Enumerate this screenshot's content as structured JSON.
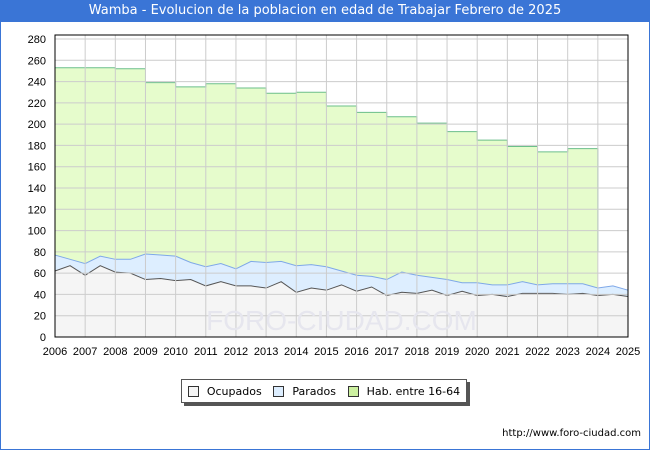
{
  "chart_data": {
    "type": "area",
    "title": "Wamba - Evolucion de la poblacion en edad de Trabajar Febrero de 2025",
    "xlabel": "",
    "ylabel": "",
    "xlim": [
      2006,
      2025
    ],
    "ylim": [
      0,
      280
    ],
    "yticks": [
      0,
      20,
      40,
      60,
      80,
      100,
      120,
      140,
      160,
      180,
      200,
      220,
      240,
      260,
      280
    ],
    "xticks": [
      2006,
      2007,
      2008,
      2009,
      2010,
      2011,
      2012,
      2013,
      2014,
      2015,
      2016,
      2017,
      2018,
      2019,
      2020,
      2021,
      2022,
      2023,
      2024,
      2025
    ],
    "grid": true,
    "legend": "bottom",
    "x_half_years": [
      2006,
      2006.5,
      2007,
      2007.5,
      2008,
      2008.5,
      2009,
      2009.5,
      2010,
      2010.5,
      2011,
      2011.5,
      2012,
      2012.5,
      2013,
      2013.5,
      2014,
      2014.5,
      2015,
      2015.5,
      2016,
      2016.5,
      2017,
      2017.5,
      2018,
      2018.5,
      2019,
      2019.5,
      2020,
      2020.5,
      2021,
      2021.5,
      2022,
      2022.5,
      2023,
      2023.5,
      2024,
      2024.5,
      2025
    ],
    "series": [
      {
        "name": "Ocupados",
        "color": "#f5f5f5",
        "line": "#555555",
        "values": [
          62,
          67,
          58,
          67,
          61,
          60,
          54,
          55,
          53,
          54,
          48,
          52,
          48,
          48,
          46,
          52,
          42,
          46,
          44,
          49,
          43,
          47,
          39,
          42,
          41,
          44,
          39,
          43,
          39,
          40,
          38,
          41,
          41,
          41,
          40,
          41,
          39,
          40,
          38
        ]
      },
      {
        "name": "Parados",
        "color": "#ddeeff",
        "line": "#7fa8e8",
        "values": [
          15,
          6,
          11,
          9,
          12,
          13,
          24,
          22,
          23,
          16,
          18,
          17,
          16,
          23,
          24,
          19,
          25,
          22,
          22,
          13,
          15,
          10,
          15,
          19,
          17,
          12,
          15,
          8,
          12,
          9,
          11,
          11,
          8,
          9,
          10,
          9,
          7,
          8,
          6
        ]
      },
      {
        "name": "Hab. entre 16-64",
        "color": "#e6fccc",
        "line": "#6bbf8a",
        "years": [
          2006,
          2007,
          2008,
          2009,
          2010,
          2011,
          2012,
          2013,
          2014,
          2015,
          2016,
          2017,
          2018,
          2019,
          2020,
          2021,
          2022,
          2023
        ],
        "values": [
          253,
          253,
          252,
          239,
          235,
          238,
          234,
          229,
          230,
          217,
          211,
          207,
          201,
          193,
          185,
          179,
          174,
          177
        ]
      }
    ]
  },
  "watermark": "FORO-CIUDAD.COM",
  "url": "http://www.foro-ciudad.com"
}
